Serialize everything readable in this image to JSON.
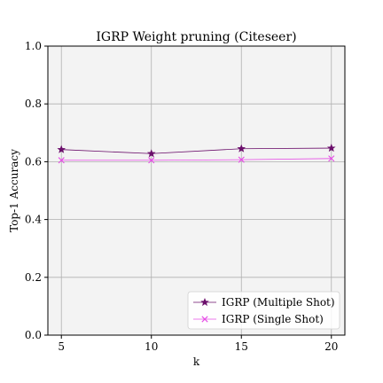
{
  "chart_data": {
    "type": "line",
    "title": "IGRP Weight pruning (Citeseer)",
    "xlabel": "k",
    "ylabel": "Top-1 Accuracy",
    "x": [
      5,
      10,
      15,
      20
    ],
    "xticks": [
      "5",
      "10",
      "15",
      "20"
    ],
    "xlim": [
      4.25,
      20.75
    ],
    "ylim": [
      0.0,
      1.0
    ],
    "yticks": [
      "0.0",
      "0.2",
      "0.4",
      "0.6",
      "0.8",
      "1.0"
    ],
    "grid": true,
    "legend_position": "lower-right",
    "plot_background": "#f3f3f3",
    "series": [
      {
        "name": "IGRP (Multiple Shot)",
        "values": [
          0.642,
          0.628,
          0.645,
          0.647
        ],
        "color": "#6b0f6b",
        "marker": "star"
      },
      {
        "name": "IGRP (Single Shot)",
        "values": [
          0.605,
          0.605,
          0.607,
          0.611
        ],
        "color": "#e64ce6",
        "marker": "x"
      }
    ]
  }
}
